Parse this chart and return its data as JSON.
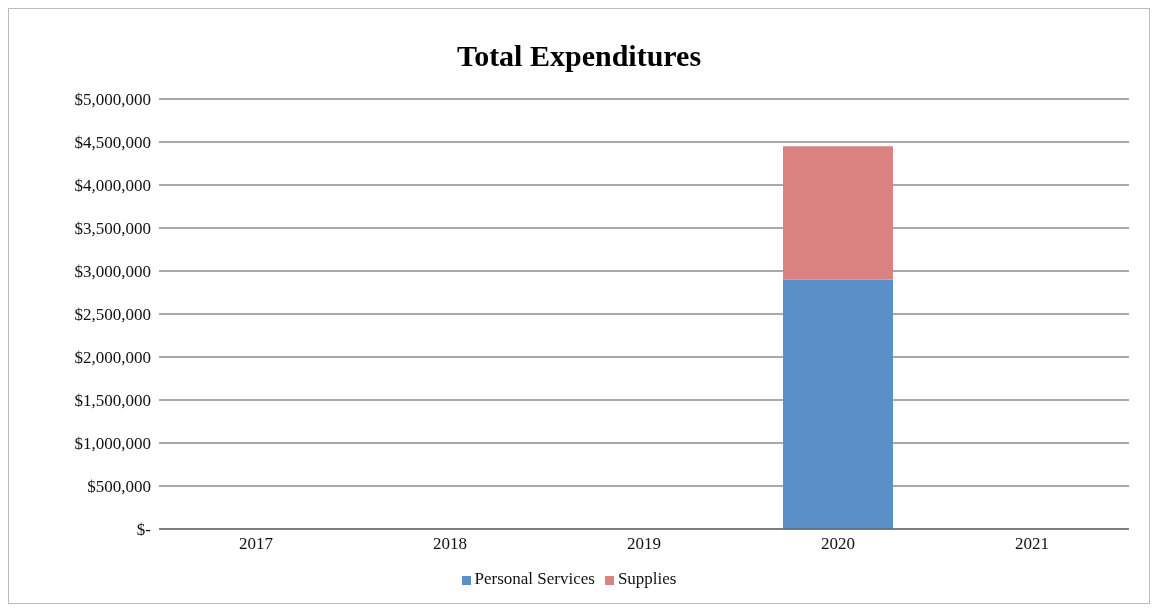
{
  "chart_data": {
    "type": "bar",
    "title": "Total Expenditures",
    "categories": [
      "2017",
      "2018",
      "2019",
      "2020",
      "2021"
    ],
    "stacked": true,
    "series": [
      {
        "name": "Personal Services",
        "color": "#5b8fc7",
        "values": [
          null,
          null,
          null,
          2900000,
          null
        ]
      },
      {
        "name": "Supplies",
        "color": "#d9827f",
        "values": [
          null,
          null,
          null,
          1550000,
          null
        ]
      }
    ],
    "ylim": [
      0,
      5000000
    ],
    "yticks": [
      {
        "value": 0,
        "label": "$-"
      },
      {
        "value": 500000,
        "label": "$500,000"
      },
      {
        "value": 1000000,
        "label": "$1,000,000"
      },
      {
        "value": 1500000,
        "label": "$1,500,000"
      },
      {
        "value": 2000000,
        "label": "$2,000,000"
      },
      {
        "value": 2500000,
        "label": "$2,500,000"
      },
      {
        "value": 3000000,
        "label": "$3,000,000"
      },
      {
        "value": 3500000,
        "label": "$3,500,000"
      },
      {
        "value": 4000000,
        "label": "$4,000,000"
      },
      {
        "value": 4500000,
        "label": "$4,500,000"
      },
      {
        "value": 5000000,
        "label": "$5,000,000"
      }
    ],
    "grid": "y",
    "legend": "bottom"
  }
}
